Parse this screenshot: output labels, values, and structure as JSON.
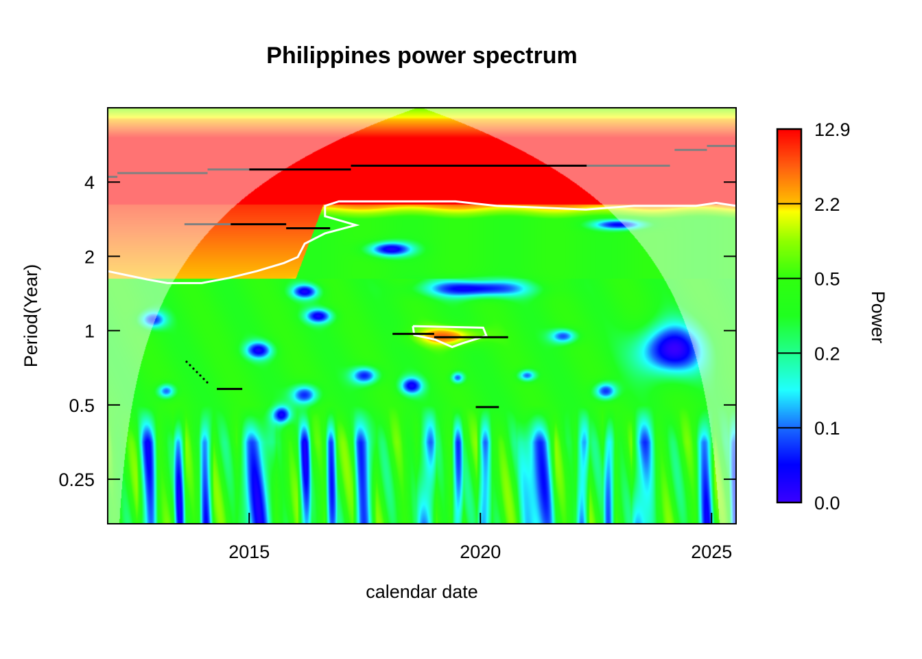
{
  "chart_data": {
    "type": "heatmap",
    "title": "Philippines power spectrum",
    "xlabel": "calendar date",
    "ylabel": "Period(Year)",
    "xlim": [
      2011.94,
      2025.53
    ],
    "ylim_log2_period": [
      -2.6,
      3.0
    ],
    "x_ticks": [
      {
        "value": 2015,
        "label": "2015"
      },
      {
        "value": 2020,
        "label": "2020"
      },
      {
        "value": 2025,
        "label": "2025"
      }
    ],
    "y_ticks": [
      {
        "value": 4,
        "label": "4"
      },
      {
        "value": 2,
        "label": "2"
      },
      {
        "value": 1,
        "label": "1"
      },
      {
        "value": 0.5,
        "label": "0.5"
      },
      {
        "value": 0.25,
        "label": "0.25"
      }
    ],
    "colorbar": {
      "title": "Power",
      "labels": [
        "0.0",
        "0.1",
        "0.2",
        "0.5",
        "2.2",
        "12.9"
      ],
      "stops": [
        "#3a00ff",
        "#0000ff",
        "#1a6cff",
        "#20ffff",
        "#20ff90",
        "#20ff20",
        "#30ff10",
        "#90ff00",
        "#ffff00",
        "#ffc000",
        "#ff6010",
        "#ff0000"
      ]
    },
    "ridges": [
      {
        "color": "#000000",
        "t": [
          2015.0,
          2017.2
        ],
        "period": 4.5
      },
      {
        "color": "#000000",
        "t": [
          2017.2,
          2022.3
        ],
        "period": 4.66
      },
      {
        "color": "#808080",
        "t": [
          2011.94,
          2012.15
        ],
        "period": 4.2
      },
      {
        "color": "#808080",
        "t": [
          2012.15,
          2014.1
        ],
        "period": 4.35
      },
      {
        "color": "#808080",
        "t": [
          2014.1,
          2015.0
        ],
        "period": 4.5
      },
      {
        "color": "#808080",
        "t": [
          2022.3,
          2024.1
        ],
        "period": 4.66
      },
      {
        "color": "#808080",
        "t": [
          2024.2,
          2024.9
        ],
        "period": 5.4
      },
      {
        "color": "#808080",
        "t": [
          2024.9,
          2025.53
        ],
        "period": 5.6
      },
      {
        "color": "#808080",
        "t": [
          2013.6,
          2014.6
        ],
        "period": 2.7
      },
      {
        "color": "#000000",
        "t": [
          2014.6,
          2015.8
        ],
        "period": 2.7
      },
      {
        "color": "#000000",
        "t": [
          2015.8,
          2016.75
        ],
        "period": 2.6
      },
      {
        "color": "#000000",
        "t": [
          2018.1,
          2019.0
        ],
        "period": 0.97
      },
      {
        "color": "#000000",
        "t": [
          2019.0,
          2020.6
        ],
        "period": 0.94
      },
      {
        "color": "#000000",
        "t": [
          2014.3,
          2014.85
        ],
        "period": 0.58
      },
      {
        "color": "#000000",
        "t": [
          2019.9,
          2020.4
        ],
        "period": 0.49
      }
    ],
    "significance_contours": [
      [
        [
          2011.94,
          0.8
        ],
        [
          2012.79,
          0.69
        ],
        [
          2013.23,
          0.64
        ],
        [
          2013.97,
          0.64
        ],
        [
          2014.57,
          0.71
        ],
        [
          2015.16,
          0.8
        ],
        [
          2015.75,
          0.91
        ],
        [
          2016.05,
          0.99
        ],
        [
          2016.2,
          1.17
        ],
        [
          2016.64,
          1.31
        ],
        [
          2017.31,
          1.42
        ],
        [
          2016.64,
          1.54
        ],
        [
          2016.64,
          1.68
        ],
        [
          2016.94,
          1.74
        ],
        [
          2019.46,
          1.74
        ],
        [
          2020.35,
          1.68
        ],
        [
          2022.28,
          1.63
        ],
        [
          2023.32,
          1.68
        ],
        [
          2024.66,
          1.68
        ],
        [
          2025.1,
          1.72
        ],
        [
          2025.53,
          1.68
        ]
      ],
      [
        [
          2018.54,
          0.06
        ],
        [
          2020.06,
          0.04
        ],
        [
          2020.13,
          -0.07
        ],
        [
          2019.61,
          -0.17
        ],
        [
          2019.39,
          -0.22
        ],
        [
          2019.02,
          -0.12
        ],
        [
          2018.57,
          -0.06
        ],
        [
          2018.54,
          0.06
        ]
      ]
    ]
  }
}
